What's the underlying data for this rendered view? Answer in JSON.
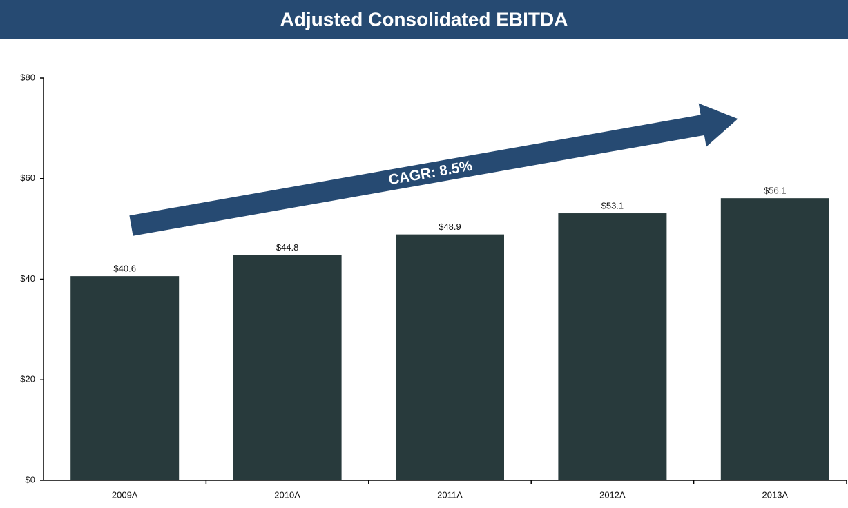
{
  "chart_data": {
    "type": "bar",
    "title": "Adjusted Consolidated EBITDA",
    "categories": [
      "2009A",
      "2010A",
      "2011A",
      "2012A",
      "2013A"
    ],
    "values": [
      40.6,
      44.8,
      48.9,
      53.1,
      56.1
    ],
    "value_labels": [
      "$40.6",
      "$44.8",
      "$48.9",
      "$53.1",
      "$56.1"
    ],
    "color": "#283a3c",
    "ylim": [
      0,
      80
    ],
    "yticks": [
      {
        "value": 0,
        "label": "$0"
      },
      {
        "value": 20,
        "label": "$20"
      },
      {
        "value": 40,
        "label": "$40"
      },
      {
        "value": 60,
        "label": "$60"
      },
      {
        "value": 80,
        "label": "$80"
      }
    ],
    "annotation": "CAGR: 8.5%"
  }
}
